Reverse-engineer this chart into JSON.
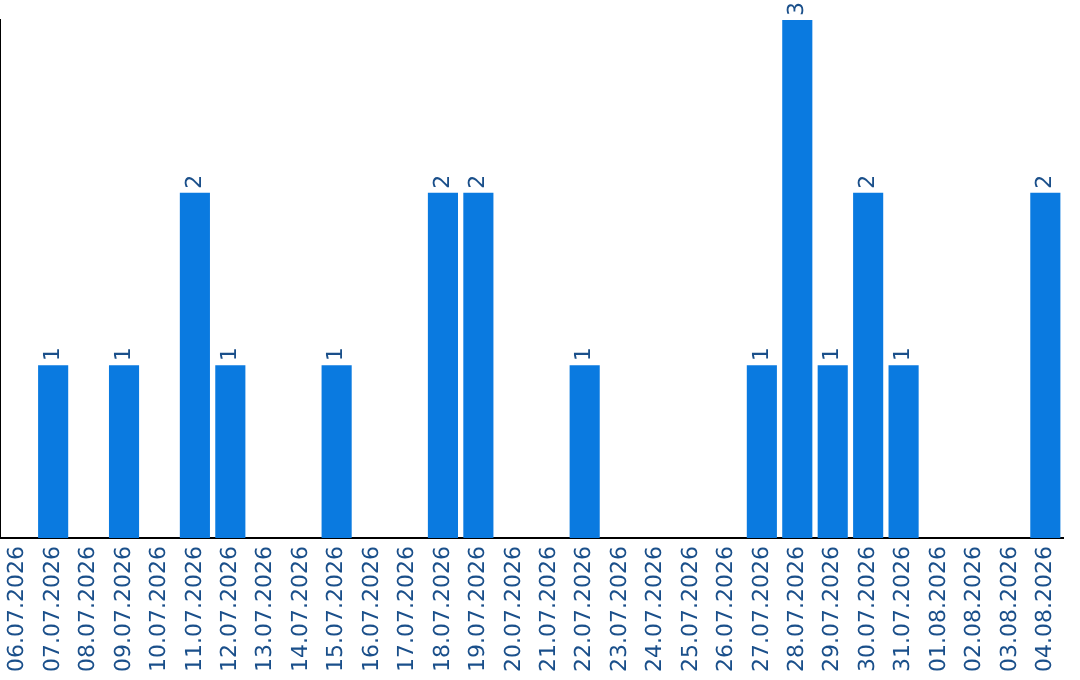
{
  "chart_data": {
    "type": "bar",
    "categories": [
      "06.07.2026",
      "07.07.2026",
      "08.07.2026",
      "09.07.2026",
      "10.07.2026",
      "11.07.2026",
      "12.07.2026",
      "13.07.2026",
      "14.07.2026",
      "15.07.2026",
      "16.07.2026",
      "17.07.2026",
      "18.07.2026",
      "19.07.2026",
      "20.07.2026",
      "21.07.2026",
      "22.07.2026",
      "23.07.2026",
      "24.07.2026",
      "25.07.2026",
      "26.07.2026",
      "27.07.2026",
      "28.07.2026",
      "29.07.2026",
      "30.07.2026",
      "31.07.2026",
      "01.08.2026",
      "02.08.2026",
      "03.08.2026",
      "04.08.2026"
    ],
    "values": [
      0,
      1,
      0,
      1,
      0,
      2,
      1,
      0,
      0,
      1,
      0,
      0,
      2,
      2,
      0,
      0,
      1,
      0,
      0,
      0,
      0,
      1,
      3,
      1,
      2,
      1,
      0,
      0,
      0,
      2
    ],
    "value_labels": [
      null,
      "1",
      null,
      "1",
      null,
      "2",
      "1",
      null,
      null,
      "1",
      null,
      null,
      "2",
      "2",
      null,
      null,
      "1",
      null,
      null,
      null,
      null,
      "1",
      "3",
      "1",
      "2",
      "1",
      null,
      null,
      null,
      "2"
    ],
    "color": "#0a7ae0",
    "tick_labels": "x",
    "grid": false,
    "legend": false
  }
}
